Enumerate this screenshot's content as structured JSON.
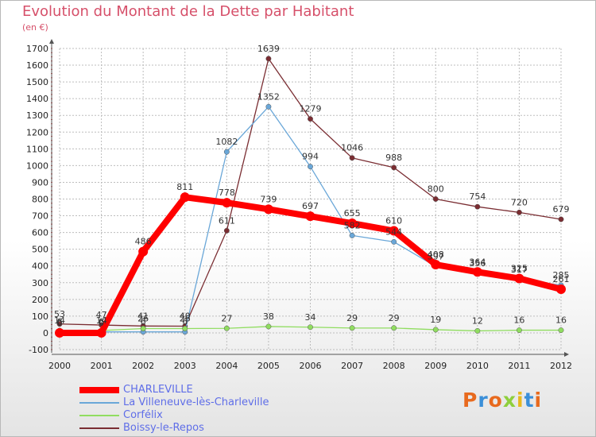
{
  "title": "Evolution du Montant de la Dette par Habitant",
  "unit_label": "(en €)",
  "logo_text": "Proxiti",
  "colors": {
    "title": "#d6506a",
    "legend_text": "#5f6ee8",
    "grid": "#bdbdbd",
    "axis_text": "#222222",
    "label_text": "#333333"
  },
  "chart_data": {
    "type": "line",
    "x": [
      "2000",
      "2001",
      "2002",
      "2003",
      "2004",
      "2005",
      "2006",
      "2007",
      "2008",
      "2009",
      "2010",
      "2011",
      "2012"
    ],
    "ylim": [
      -100,
      1700
    ],
    "y_ticks": [
      -100,
      0,
      100,
      200,
      300,
      400,
      500,
      600,
      700,
      800,
      900,
      1000,
      1100,
      1200,
      1300,
      1400,
      1500,
      1600,
      1700
    ],
    "grid": true,
    "legend_position": "bottom-left",
    "series": [
      {
        "name": "CHARLEVILLE",
        "color": "#ff0000",
        "values": [
          0,
          0,
          486,
          811,
          778,
          739,
          697,
          655,
          610,
          408,
          364,
          325,
          261
        ]
      },
      {
        "name": "La Villeneuve-lès-Charleville",
        "color": "#6aa7d8",
        "values": [
          6,
          6,
          6,
          6,
          1082,
          1352,
          994,
          582,
          544,
          397,
          356,
          317,
          285
        ]
      },
      {
        "name": "Corfélix",
        "color": "#90dd60",
        "values": [
          14,
          14,
          26,
          26,
          27,
          38,
          34,
          29,
          29,
          19,
          12,
          16,
          16
        ]
      },
      {
        "name": "Boissy-le-Repos",
        "color": "#7a2d32",
        "values": [
          53,
          47,
          41,
          40,
          611,
          1639,
          1279,
          1046,
          988,
          800,
          754,
          720,
          679
        ]
      }
    ]
  }
}
